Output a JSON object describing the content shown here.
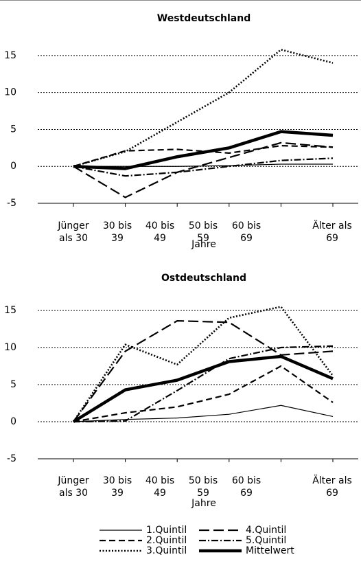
{
  "chart_data": [
    {
      "type": "line",
      "title": "Westdeutschland",
      "x_label": "Jahre",
      "categories": [
        "Jünger als 30",
        "30 bis 39",
        "40 bis 49",
        "50 bis 59",
        "60 bis 69",
        "Älter als 69"
      ],
      "ylim": [
        -5,
        17.5
      ],
      "yticks": [
        -5,
        0,
        5,
        10,
        15
      ],
      "grid": true,
      "series": [
        {
          "name": "1.Quintil",
          "color": "#000000",
          "values": [
            0,
            0,
            0,
            0.1,
            0.3,
            0.3
          ]
        },
        {
          "name": "2.Quintil",
          "color": "#000000",
          "values": [
            0,
            2.1,
            2.3,
            1.8,
            2.8,
            2.6
          ]
        },
        {
          "name": "3.Quintil",
          "color": "#000000",
          "values": [
            0,
            2.0,
            6.0,
            10.0,
            15.8,
            14.0
          ]
        },
        {
          "name": "4.Quintil",
          "color": "#000000",
          "values": [
            0,
            -4.2,
            -0.8,
            1.2,
            3.2,
            2.6
          ]
        },
        {
          "name": "5.Quintil",
          "color": "#000000",
          "values": [
            0,
            -1.3,
            -0.8,
            0,
            0.8,
            1.1
          ]
        },
        {
          "name": "Mittelwert",
          "color": "#000000",
          "values": [
            0,
            -0.3,
            1.3,
            2.5,
            4.7,
            4.2
          ]
        }
      ]
    },
    {
      "type": "line",
      "title": "Ostdeutschland",
      "x_label": "Jahre",
      "categories": [
        "Jünger als 30",
        "30 bis 39",
        "40 bis 49",
        "50 bis 59",
        "60 bis 69",
        "Älter als 69"
      ],
      "ylim": [
        -5,
        17.5
      ],
      "yticks": [
        -5,
        0,
        5,
        10,
        15
      ],
      "grid": true,
      "series": [
        {
          "name": "1.Quintil",
          "color": "#000000",
          "values": [
            0,
            0.3,
            0.5,
            1.0,
            2.2,
            0.7
          ]
        },
        {
          "name": "2.Quintil",
          "color": "#000000",
          "values": [
            0,
            1.2,
            2.0,
            3.7,
            7.5,
            2.6
          ]
        },
        {
          "name": "3.Quintil",
          "color": "#000000",
          "values": [
            0,
            10.4,
            7.7,
            14.0,
            15.5,
            6.2
          ]
        },
        {
          "name": "4.Quintil",
          "color": "#000000",
          "values": [
            0,
            9.5,
            13.6,
            13.4,
            9.0,
            9.5
          ]
        },
        {
          "name": "5.Quintil",
          "color": "#000000",
          "values": [
            0,
            0.1,
            4.2,
            8.5,
            10.0,
            10.2
          ]
        },
        {
          "name": "Mittelwert",
          "color": "#000000",
          "values": [
            0,
            4.3,
            5.6,
            8.1,
            8.8,
            5.8
          ]
        }
      ]
    }
  ]
}
